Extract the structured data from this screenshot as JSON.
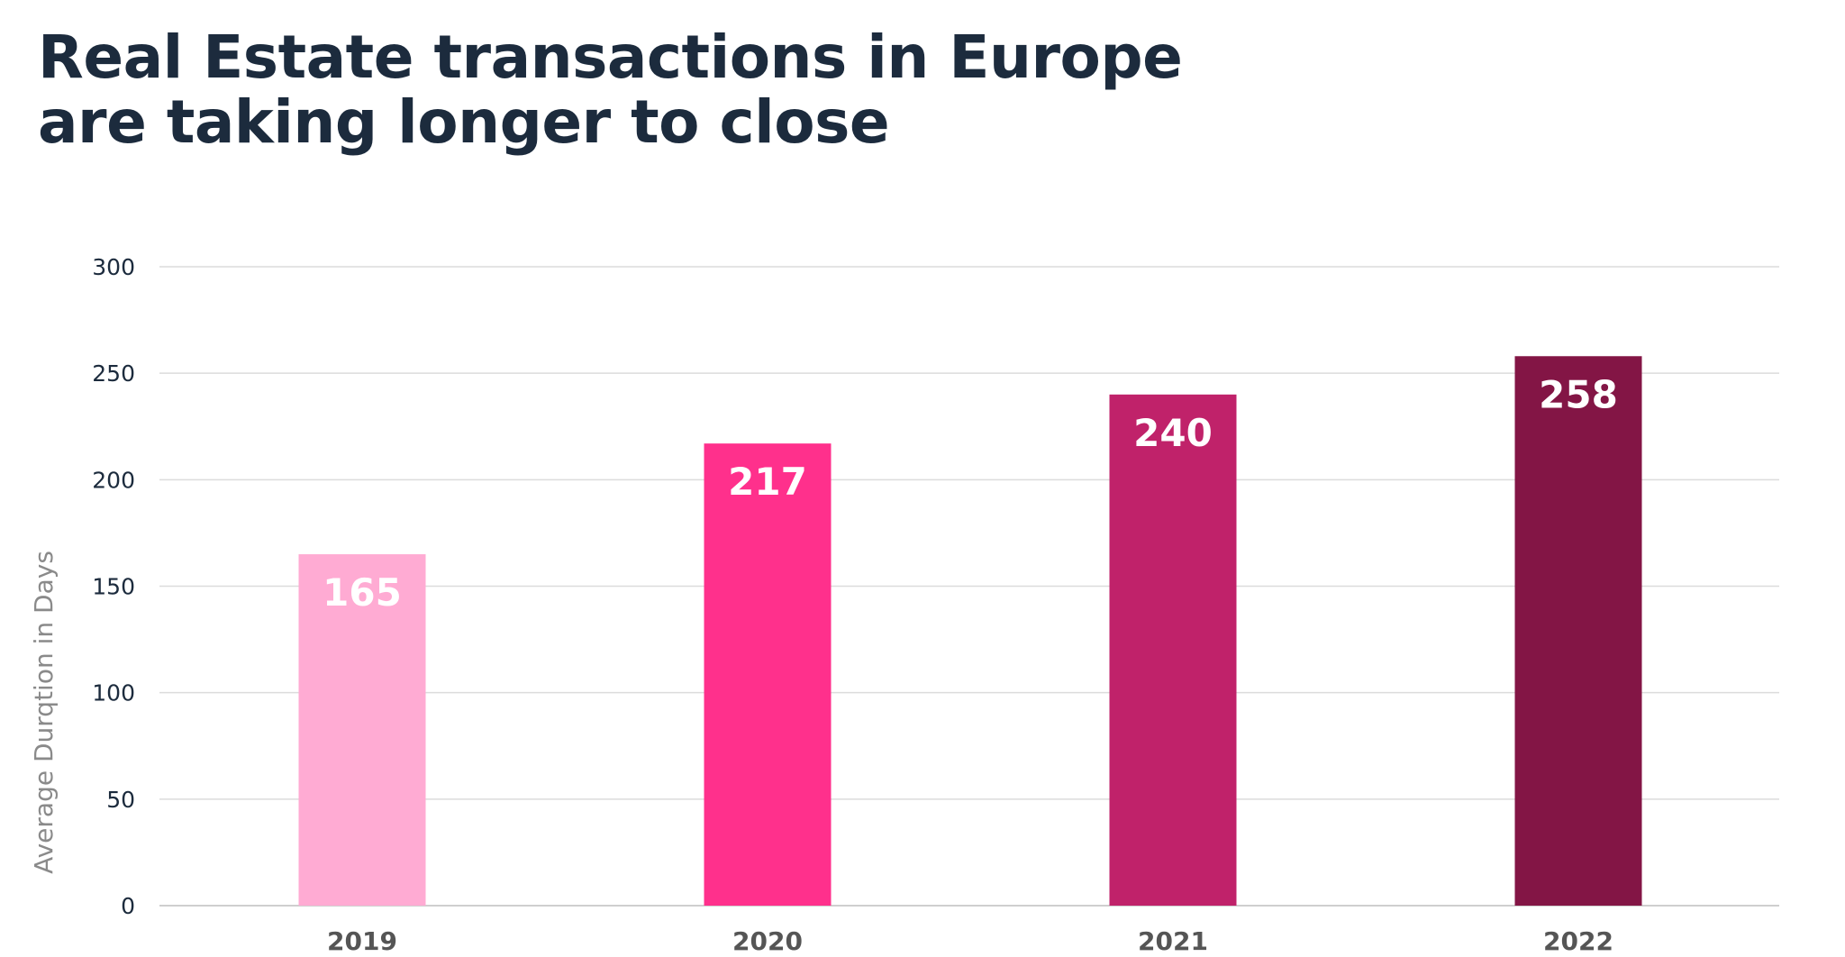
{
  "chart_data": {
    "type": "bar",
    "title_lines": [
      "Real Estate transactions in Europe",
      "are taking longer to close"
    ],
    "xlabel": "",
    "ylabel": "Average Durqtion in Days",
    "categories": [
      "2019",
      "2020",
      "2021",
      "2022"
    ],
    "values": [
      165,
      217,
      240,
      258
    ],
    "data_labels": [
      "165",
      "217",
      "240",
      "258"
    ],
    "bar_colors": [
      "#ffabd3",
      "#ff308c",
      "#c0226a",
      "#831545"
    ],
    "ylim": [
      0,
      300
    ],
    "yticks": [
      0,
      50,
      100,
      150,
      200,
      250,
      300
    ],
    "ytick_labels": [
      "0",
      "50",
      "100",
      "150",
      "200",
      "250",
      "300"
    ],
    "grid": true,
    "legend": "none"
  },
  "colors": {
    "title": "#1c2b3d",
    "grid": "#dcdcdc",
    "axis": "#cfcfcf",
    "category_label": "#555555",
    "ylabel": "#8a8a8a"
  }
}
